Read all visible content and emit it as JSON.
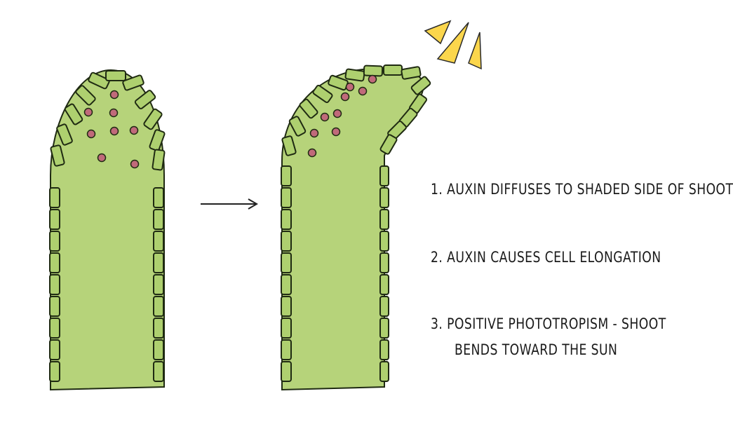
{
  "colors": {
    "shoot_fill": "#b6d37a",
    "cell_fill": "#aed06f",
    "outline": "#1f2a12",
    "auxin_dot": "#c06a7a",
    "sun_ray": "#fbd64c",
    "arrow": "#222222"
  },
  "auxin_before": {
    "count": 8
  },
  "auxin_after": {
    "count": 9
  },
  "icons": {
    "light": "sun-rays-icon",
    "arrow": "right-arrow-icon"
  },
  "steps": {
    "step1": "1. AUXIN DIFFUSES TO SHADED SIDE OF SHOOT",
    "step2": "2. AUXIN CAUSES CELL ELONGATION",
    "step3_line1": "3. POSITIVE PHOTOTROPISM - SHOOT",
    "step3_line2": "BENDS TOWARD THE SUN"
  }
}
